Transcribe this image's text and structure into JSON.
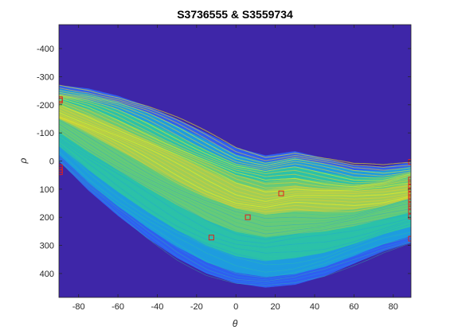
{
  "chart_data": {
    "type": "heatmap",
    "title": "S3736555 & S3559734",
    "xlabel": "θ",
    "ylabel": "ρ",
    "xlim": [
      -90,
      89
    ],
    "ylim": [
      -485,
      485
    ],
    "y_reversed": true,
    "grid": false,
    "legend": "none",
    "x_ticks": [
      -80,
      -60,
      -40,
      -20,
      0,
      20,
      40,
      60,
      80
    ],
    "y_ticks": [
      -400,
      -300,
      -200,
      -100,
      0,
      100,
      200,
      300,
      400
    ],
    "x_tick_labels": [
      "-80",
      "-60",
      "-40",
      "-20",
      "0",
      "20",
      "40",
      "60",
      "80"
    ],
    "y_tick_labels": [
      "-400",
      "-300",
      "-200",
      "-100",
      "0",
      "100",
      "200",
      "300",
      "400"
    ],
    "colormap": [
      "#3e26a8",
      "#2f5ff0",
      "#1d9fdd",
      "#2ec8a0",
      "#8ed05a",
      "#e6d22c",
      "#f9f314"
    ],
    "band_envelope": {
      "theta": [
        -90,
        -75,
        -60,
        -45,
        -30,
        -15,
        0,
        15,
        30,
        45,
        60,
        75,
        89
      ],
      "rho_top": [
        -270,
        -258,
        -232,
        -195,
        -150,
        -100,
        -48,
        -20,
        -35,
        -10,
        15,
        20,
        5
      ],
      "rho_bottom": [
        0,
        105,
        195,
        275,
        345,
        400,
        435,
        450,
        440,
        410,
        365,
        320,
        290
      ]
    },
    "peaks": [
      {
        "theta": -89.5,
        "rho": -220
      },
      {
        "theta": -89.5,
        "rho": -215
      },
      {
        "theta": -89.5,
        "rho": 40
      },
      {
        "theta": -89.5,
        "rho": 32
      },
      {
        "theta": -89.5,
        "rho": 22
      },
      {
        "theta": -12.5,
        "rho": 272
      },
      {
        "theta": 6,
        "rho": 200
      },
      {
        "theta": 23,
        "rho": 115
      },
      {
        "theta": 89,
        "rho": 3
      },
      {
        "theta": 89,
        "rho": 66
      },
      {
        "theta": 89,
        "rho": 76
      },
      {
        "theta": 89,
        "rho": 90
      },
      {
        "theta": 89,
        "rho": 103
      },
      {
        "theta": 89,
        "rho": 116
      },
      {
        "theta": 89,
        "rho": 128
      },
      {
        "theta": 89,
        "rho": 140
      },
      {
        "theta": 89,
        "rho": 153
      },
      {
        "theta": 89,
        "rho": 165
      },
      {
        "theta": 89,
        "rho": 177
      },
      {
        "theta": 89,
        "rho": 197
      },
      {
        "theta": 89,
        "rho": 276
      }
    ],
    "colors": {
      "background": "#3e26a8",
      "peak_marker": "#e0201b",
      "axis": "#262626"
    }
  }
}
